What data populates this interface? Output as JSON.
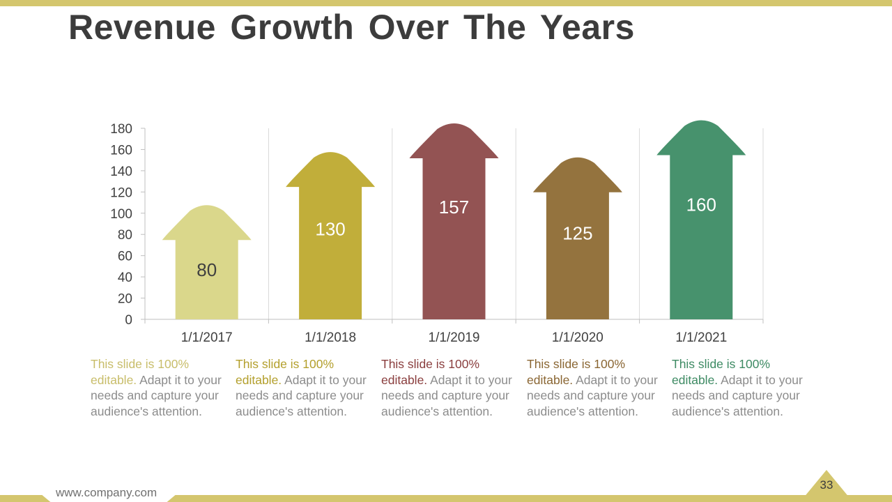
{
  "slide": {
    "title": "Revenue Growth Over The Years",
    "footer_url": "www.company.com",
    "page_number": "33"
  },
  "chart_data": {
    "type": "bar",
    "mark": "arrow",
    "categories": [
      "1/1/2017",
      "1/1/2018",
      "1/1/2019",
      "1/1/2020",
      "1/1/2021"
    ],
    "values": [
      80,
      130,
      157,
      125,
      160
    ],
    "colors": [
      "#dad78b",
      "#c1ae3a",
      "#935353",
      "#94733e",
      "#47926d"
    ],
    "label_colors": [
      "#404040",
      "#ffffff",
      "#ffffff",
      "#ffffff",
      "#ffffff"
    ],
    "ylim": [
      0,
      180
    ],
    "yticks": [
      0,
      20,
      40,
      60,
      80,
      100,
      120,
      140,
      160,
      180
    ],
    "grid": "vertical-separators",
    "title": "",
    "xlabel": "",
    "ylabel": ""
  },
  "descriptions": [
    {
      "highlight": "This slide is 100% editable.",
      "body": " Adapt it to your needs and capture your audience's attention.",
      "color": "#c8bd6a"
    },
    {
      "highlight": "This slide is 100% editable.",
      "body": " Adapt it to your needs and capture your audience's attention.",
      "color": "#b39f2c"
    },
    {
      "highlight": "This slide is 100% editable.",
      "body": " Adapt it to your needs and capture your audience's attention.",
      "color": "#8a3e3e"
    },
    {
      "highlight": "This slide is 100% editable.",
      "body": " Adapt it to your needs and capture your audience's attention.",
      "color": "#8a6633"
    },
    {
      "highlight": "This slide is 100% editable.",
      "body": " Adapt it to your needs and capture your audience's attention.",
      "color": "#3d8a63"
    }
  ]
}
